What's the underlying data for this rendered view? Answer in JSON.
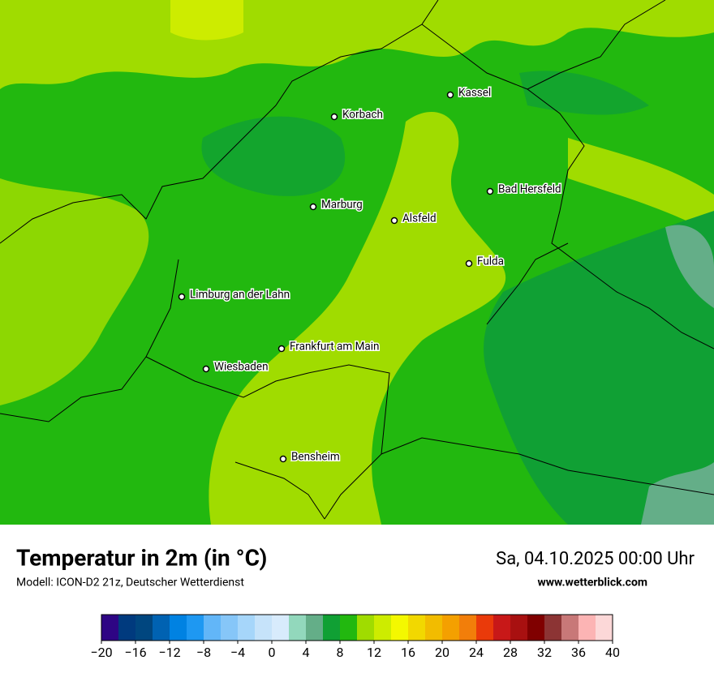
{
  "map": {
    "cities": [
      "Kassel",
      "Korbach",
      "Marburg",
      "Alsfeld",
      "Bad Hersfeld",
      "Fulda",
      "Limburg an der Lahn",
      "Frankfurt am Main",
      "Wiesbaden",
      "Bensheim"
    ]
  },
  "footer": {
    "title": "Temperatur in 2m (in °C)",
    "model": "Modell: ICON-D2 21z, Deutscher Wetterdienst",
    "datetime": "Sa, 04.10.2025 00:00 Uhr",
    "website": "www.wetterblick.com"
  },
  "colorbar": {
    "range": [
      -20,
      40
    ],
    "colors": [
      "#2e0584",
      "#003a7e",
      "#00467f",
      "#0062b2",
      "#0082e2",
      "#1e98f2",
      "#62b6f8",
      "#86c6f8",
      "#a6d6fa",
      "#c6e3fa",
      "#d8ebfc",
      "#92d8bc",
      "#64ae88",
      "#10a034",
      "#22b80f",
      "#a0dc00",
      "#cdec00",
      "#f4f800",
      "#f2d800",
      "#f2bc00",
      "#f4a000",
      "#f27e0a",
      "#ea3a0a",
      "#c81818",
      "#a81010",
      "#800000",
      "#8c3434",
      "#c87878",
      "#fcb4b4",
      "#fcd8d8"
    ],
    "ticks": [
      {
        "value": -20,
        "label": "−20"
      },
      {
        "value": -16,
        "label": "−16"
      },
      {
        "value": -12,
        "label": "−12"
      },
      {
        "value": -8,
        "label": "−8"
      },
      {
        "value": -4,
        "label": "−4"
      },
      0,
      4,
      8,
      12,
      16,
      20,
      24,
      28,
      32,
      36,
      40
    ]
  }
}
